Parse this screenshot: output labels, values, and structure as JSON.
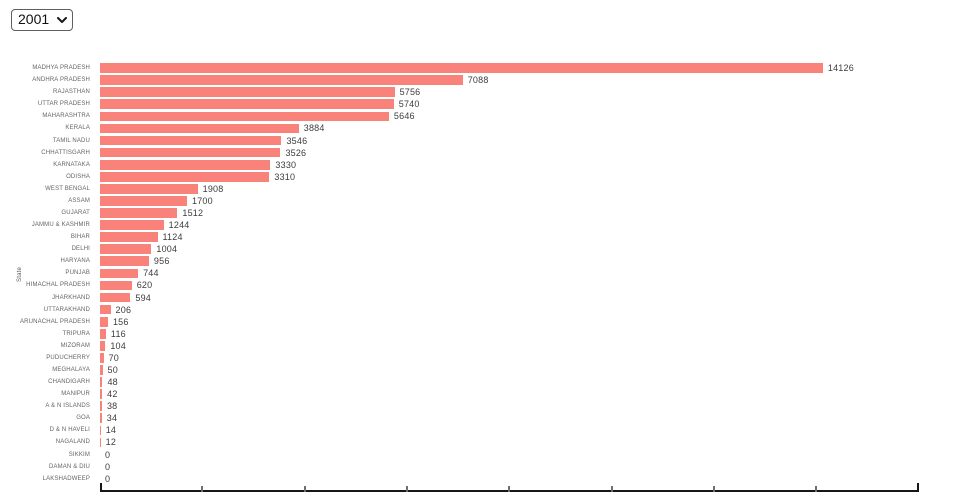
{
  "controls": {
    "year_select": {
      "value": "2001"
    }
  },
  "chart_data": {
    "type": "bar",
    "orientation": "horizontal",
    "title": "",
    "xlabel": "",
    "ylabel": "State",
    "xlim": [
      0,
      16000
    ],
    "x_tick_step": 2000,
    "grid": false,
    "legend": "none",
    "bar_color": "#f9837b",
    "value_label_color": "#3c3c3c",
    "category_label_color": "#646464",
    "categories": [
      "MADHYA PRADESH",
      "ANDHRA PRADESH",
      "RAJASTHAN",
      "UTTAR PRADESH",
      "MAHARASHTRA",
      "KERALA",
      "TAMIL NADU",
      "CHHATTISGARH",
      "KARNATAKA",
      "ODISHA",
      "WEST BENGAL",
      "ASSAM",
      "GUJARAT",
      "JAMMU & KASHMIR",
      "BIHAR",
      "DELHI",
      "HARYANA",
      "PUNJAB",
      "HIMACHAL PRADESH",
      "JHARKHAND",
      "UTTARAKHAND",
      "ARUNACHAL PRADESH",
      "TRIPURA",
      "MIZORAM",
      "PUDUCHERRY",
      "MEGHALAYA",
      "CHANDIGARH",
      "MANIPUR",
      "A & N ISLANDS",
      "GOA",
      "D & N HAVELI",
      "NAGALAND",
      "SIKKIM",
      "DAMAN & DIU",
      "LAKSHADWEEP"
    ],
    "values": [
      14126,
      7088,
      5756,
      5740,
      5646,
      3884,
      3546,
      3526,
      3330,
      3310,
      1908,
      1700,
      1512,
      1244,
      1124,
      1004,
      956,
      744,
      620,
      594,
      206,
      156,
      116,
      104,
      70,
      50,
      48,
      42,
      38,
      34,
      14,
      12,
      0,
      0,
      0
    ]
  }
}
